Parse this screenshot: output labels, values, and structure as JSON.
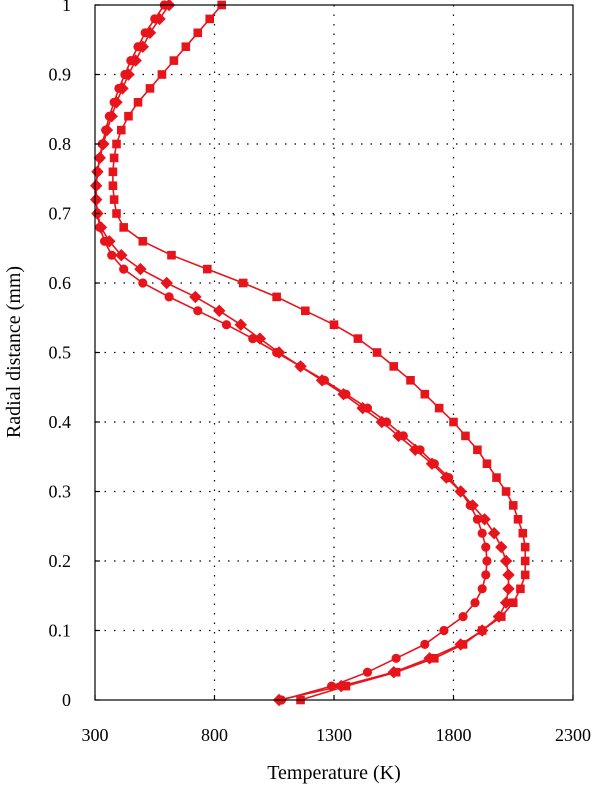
{
  "colors": {
    "series": "#e8141c",
    "axis": "#000000",
    "background": "#ffffff"
  },
  "chart_data": {
    "type": "line",
    "title": "",
    "xlabel": "Temperature (K)",
    "ylabel": "Radial distance (mm)",
    "xlim": [
      300,
      2300
    ],
    "ylim": [
      0,
      1
    ],
    "xticks": [
      300,
      800,
      1300,
      1800,
      2300
    ],
    "xtick_labels": [
      "300",
      "800",
      "1300",
      "1800",
      "2300"
    ],
    "yticks": [
      0,
      0.1,
      0.2,
      0.3,
      0.4,
      0.5,
      0.6,
      0.7,
      0.8,
      0.9,
      1
    ],
    "ytick_labels": [
      "0",
      "0.1",
      "0.2",
      "0.3",
      "0.4",
      "0.5",
      "0.6",
      "0.7",
      "0.8",
      "0.9",
      "1"
    ],
    "grid": true,
    "series": [
      {
        "marker": "circle",
        "points": [
          [
            1080,
            0.0
          ],
          [
            1290,
            0.02
          ],
          [
            1440,
            0.04
          ],
          [
            1560,
            0.06
          ],
          [
            1680,
            0.08
          ],
          [
            1760,
            0.1
          ],
          [
            1840,
            0.12
          ],
          [
            1890,
            0.14
          ],
          [
            1920,
            0.16
          ],
          [
            1935,
            0.18
          ],
          [
            1940,
            0.2
          ],
          [
            1935,
            0.22
          ],
          [
            1920,
            0.24
          ],
          [
            1900,
            0.26
          ],
          [
            1870,
            0.28
          ],
          [
            1830,
            0.3
          ],
          [
            1780,
            0.32
          ],
          [
            1720,
            0.34
          ],
          [
            1660,
            0.36
          ],
          [
            1590,
            0.38
          ],
          [
            1520,
            0.4
          ],
          [
            1440,
            0.42
          ],
          [
            1350,
            0.44
          ],
          [
            1260,
            0.46
          ],
          [
            1160,
            0.48
          ],
          [
            1060,
            0.5
          ],
          [
            960,
            0.52
          ],
          [
            850,
            0.54
          ],
          [
            730,
            0.56
          ],
          [
            610,
            0.58
          ],
          [
            500,
            0.6
          ],
          [
            420,
            0.62
          ],
          [
            370,
            0.64
          ],
          [
            340,
            0.66
          ],
          [
            320,
            0.68
          ],
          [
            310,
            0.7
          ],
          [
            305,
            0.72
          ],
          [
            305,
            0.74
          ],
          [
            310,
            0.76
          ],
          [
            320,
            0.78
          ],
          [
            330,
            0.8
          ],
          [
            345,
            0.82
          ],
          [
            360,
            0.84
          ],
          [
            380,
            0.86
          ],
          [
            400,
            0.88
          ],
          [
            425,
            0.9
          ],
          [
            450,
            0.92
          ],
          [
            480,
            0.94
          ],
          [
            510,
            0.96
          ],
          [
            550,
            0.98
          ],
          [
            590,
            1.0
          ]
        ]
      },
      {
        "marker": "diamond",
        "points": [
          [
            1070,
            0.0
          ],
          [
            1330,
            0.02
          ],
          [
            1550,
            0.04
          ],
          [
            1700,
            0.06
          ],
          [
            1830,
            0.08
          ],
          [
            1920,
            0.1
          ],
          [
            1990,
            0.12
          ],
          [
            2020,
            0.14
          ],
          [
            2030,
            0.16
          ],
          [
            2030,
            0.18
          ],
          [
            2020,
            0.2
          ],
          [
            2000,
            0.22
          ],
          [
            1970,
            0.24
          ],
          [
            1930,
            0.26
          ],
          [
            1880,
            0.28
          ],
          [
            1830,
            0.3
          ],
          [
            1770,
            0.32
          ],
          [
            1710,
            0.34
          ],
          [
            1640,
            0.36
          ],
          [
            1570,
            0.38
          ],
          [
            1500,
            0.4
          ],
          [
            1420,
            0.42
          ],
          [
            1340,
            0.44
          ],
          [
            1250,
            0.46
          ],
          [
            1160,
            0.48
          ],
          [
            1070,
            0.5
          ],
          [
            990,
            0.52
          ],
          [
            910,
            0.54
          ],
          [
            820,
            0.56
          ],
          [
            720,
            0.58
          ],
          [
            600,
            0.6
          ],
          [
            490,
            0.62
          ],
          [
            410,
            0.64
          ],
          [
            360,
            0.66
          ],
          [
            325,
            0.68
          ],
          [
            310,
            0.7
          ],
          [
            305,
            0.72
          ],
          [
            305,
            0.74
          ],
          [
            310,
            0.76
          ],
          [
            320,
            0.78
          ],
          [
            335,
            0.8
          ],
          [
            350,
            0.82
          ],
          [
            370,
            0.84
          ],
          [
            390,
            0.86
          ],
          [
            415,
            0.88
          ],
          [
            440,
            0.9
          ],
          [
            470,
            0.92
          ],
          [
            500,
            0.94
          ],
          [
            530,
            0.96
          ],
          [
            570,
            0.98
          ],
          [
            610,
            1.0
          ]
        ]
      },
      {
        "marker": "square",
        "points": [
          [
            1160,
            0.0
          ],
          [
            1350,
            0.02
          ],
          [
            1560,
            0.04
          ],
          [
            1720,
            0.06
          ],
          [
            1840,
            0.08
          ],
          [
            1920,
            0.1
          ],
          [
            2000,
            0.12
          ],
          [
            2050,
            0.14
          ],
          [
            2080,
            0.16
          ],
          [
            2100,
            0.18
          ],
          [
            2100,
            0.2
          ],
          [
            2100,
            0.22
          ],
          [
            2090,
            0.24
          ],
          [
            2070,
            0.26
          ],
          [
            2050,
            0.28
          ],
          [
            2020,
            0.3
          ],
          [
            1980,
            0.32
          ],
          [
            1940,
            0.34
          ],
          [
            1900,
            0.36
          ],
          [
            1850,
            0.38
          ],
          [
            1800,
            0.4
          ],
          [
            1740,
            0.42
          ],
          [
            1680,
            0.44
          ],
          [
            1620,
            0.46
          ],
          [
            1550,
            0.48
          ],
          [
            1480,
            0.5
          ],
          [
            1400,
            0.52
          ],
          [
            1300,
            0.54
          ],
          [
            1180,
            0.56
          ],
          [
            1060,
            0.58
          ],
          [
            920,
            0.6
          ],
          [
            770,
            0.62
          ],
          [
            620,
            0.64
          ],
          [
            500,
            0.66
          ],
          [
            420,
            0.68
          ],
          [
            390,
            0.7
          ],
          [
            380,
            0.72
          ],
          [
            375,
            0.74
          ],
          [
            375,
            0.76
          ],
          [
            380,
            0.78
          ],
          [
            390,
            0.8
          ],
          [
            410,
            0.82
          ],
          [
            440,
            0.84
          ],
          [
            480,
            0.86
          ],
          [
            530,
            0.88
          ],
          [
            580,
            0.9
          ],
          [
            630,
            0.92
          ],
          [
            680,
            0.94
          ],
          [
            730,
            0.96
          ],
          [
            780,
            0.98
          ],
          [
            830,
            1.0
          ]
        ]
      }
    ]
  }
}
